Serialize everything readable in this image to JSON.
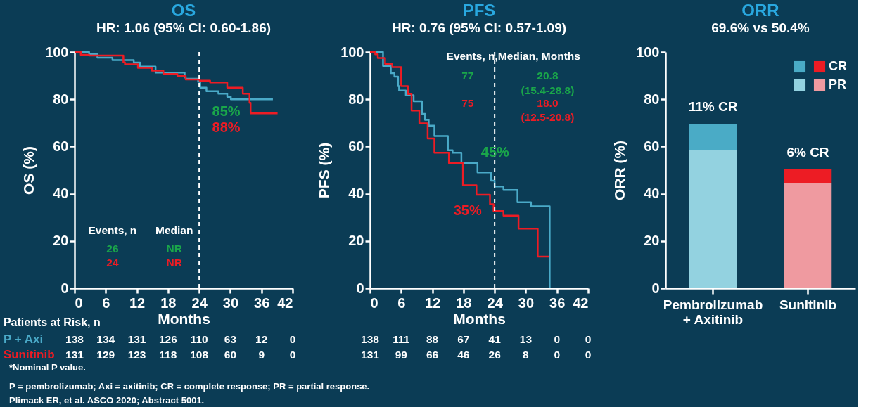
{
  "chart_data": [
    {
      "type": "step",
      "title": "OS",
      "subtitle": "HR: 1.06 (95% CI: 0.60-1.86)",
      "xlabel": "Months",
      "ylabel": "OS (%)",
      "xlim": [
        0,
        42
      ],
      "xticks": [
        0,
        6,
        12,
        18,
        24,
        30,
        36,
        42
      ],
      "ylim": [
        0,
        100
      ],
      "yticks": [
        0,
        20,
        40,
        60,
        80,
        100
      ],
      "grid": false,
      "legend": false,
      "marker": "none",
      "line_style": "solid",
      "series": [
        {
          "name": "P + Axi",
          "color": "#4aaac8",
          "x": [
            0,
            2.8,
            4.4,
            7.3,
            11.4,
            12.6,
            15.6,
            21.2,
            21.4,
            23.8,
            24.2,
            25.4,
            27.7,
            29.4,
            30.1,
            38.2
          ],
          "values": [
            100,
            99,
            97.6,
            96.6,
            95.5,
            93.8,
            91.3,
            89.4,
            88.7,
            87.4,
            84.9,
            83.4,
            82.4,
            81,
            80,
            80
          ]
        },
        {
          "name": "Sunitinib",
          "color": "#ed1c24",
          "x": [
            0,
            1.2,
            2.8,
            9.4,
            9.7,
            12.2,
            14.9,
            17.1,
            19.8,
            21.4,
            24.1,
            26.1,
            29.4,
            32.4,
            33.7,
            33.9,
            39.1
          ],
          "values": [
            100,
            98.8,
            98.5,
            95.6,
            94.8,
            93.3,
            92.1,
            90.7,
            89.9,
            88.4,
            87.9,
            87.1,
            84.9,
            82.4,
            78.5,
            74,
            74
          ]
        }
      ],
      "ref_lines": [
        {
          "axis": "x",
          "value": 24,
          "color": "#ffffff",
          "line_style": "dashed"
        }
      ],
      "annotations": [
        "85%",
        "88%",
        "Events, n",
        "Median",
        "26",
        "NR",
        "24",
        "NR",
        "Patients at Risk, n",
        "138",
        "134",
        "131",
        "126",
        "110",
        "63",
        "12",
        "0",
        "131",
        "129",
        "123",
        "118",
        "108",
        "60",
        "9",
        "0",
        "*Nominal P value.",
        "P = pembrolizumab; Axi = axitinib; CR = complete response; PR = partial response.",
        "Plimack ER, et al. ASCO 2020; Abstract 5001."
      ]
    },
    {
      "type": "step",
      "title": "PFS",
      "subtitle": "HR: 0.76 (95% CI: 0.57-1.09)",
      "xlabel": "Months",
      "ylabel": "PFS (%)",
      "xlim": [
        0,
        42
      ],
      "xticks": [
        0,
        6,
        12,
        18,
        24,
        30,
        36,
        42
      ],
      "ylim": [
        0,
        100
      ],
      "yticks": [
        0,
        20,
        40,
        60,
        80,
        100
      ],
      "grid": false,
      "legend": false,
      "marker": "none",
      "line_style": "solid",
      "series": [
        {
          "color": "#4aaac8",
          "x": [
            0,
            2.5,
            4.0,
            4.7,
            5.4,
            5.6,
            6.9,
            8.4,
            10.0,
            10.6,
            11.3,
            12.4,
            15.0,
            15.9,
            17.6,
            20.7,
            23.3,
            24.0,
            25.7,
            28.4,
            31.0,
            34.6
          ],
          "values": [
            100,
            94.1,
            91.1,
            89.6,
            85.6,
            83.7,
            81.7,
            79.2,
            73.8,
            71.3,
            68.8,
            64.4,
            58.4,
            57.4,
            53,
            49,
            45.5,
            43.1,
            41.6,
            36.4,
            34.7,
            0
          ]
        },
        {
          "color": "#ed1c24",
          "x": [
            0,
            1.0,
            1.5,
            2.9,
            4.3,
            6.0,
            7.3,
            8.0,
            9.5,
            11.1,
            12.4,
            15.2,
            17.9,
            20.5,
            23.1,
            23.8,
            25.7,
            28.6,
            32.3,
            34.5
          ],
          "values": [
            100,
            99,
            97.5,
            95,
            93.6,
            85.6,
            82.2,
            75.2,
            69.8,
            63.4,
            57.4,
            53,
            43.6,
            39.6,
            35.6,
            32.7,
            30.7,
            25.2,
            13.4,
            13.4
          ]
        }
      ],
      "ref_lines": [
        {
          "axis": "x",
          "value": 24,
          "color": "#ffffff",
          "line_style": "dashed"
        }
      ],
      "annotations": [
        "45%",
        "35%",
        "Events, n,Median, Months",
        "77",
        "20.8",
        "(15.4-28.8)",
        "75",
        "18.0",
        "(12.5-20.8)",
        "138",
        "111",
        "88",
        "67",
        "41",
        "13",
        "0",
        "0",
        "131",
        "99",
        "66",
        "46",
        "26",
        "8",
        "0",
        "0"
      ]
    },
    {
      "type": "bar",
      "stacked": true,
      "title": "ORR",
      "subtitle": "69.6% vs 50.4%",
      "ylabel": "ORR (%)",
      "categories": [
        "Pembrolizumab\n+ Axitinib",
        "Sunitinib"
      ],
      "ylim": [
        0,
        100
      ],
      "yticks": [
        0,
        20,
        40,
        60,
        80,
        100
      ],
      "grid": false,
      "legend": "top right",
      "series": [
        {
          "name": "PR",
          "colors": [
            "#93d2e0",
            "#ef9aa0"
          ],
          "values": [
            58.6,
            44.4
          ]
        },
        {
          "name": "CR",
          "colors": [
            "#4aabc6",
            "#ed1c24"
          ],
          "values": [
            11.0,
            6.0
          ],
          "value_labels": [
            "11% CR",
            "6% CR"
          ]
        }
      ]
    }
  ]
}
